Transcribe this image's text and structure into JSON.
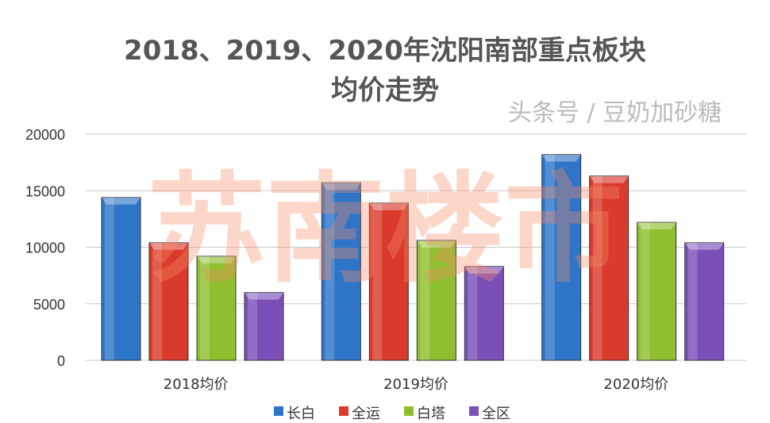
{
  "chart_data": {
    "type": "bar",
    "title_line1": "2018、2019、2020年沈阳南部重点板块",
    "title_line2": "均价走势",
    "categories": [
      "2018均价",
      "2019均价",
      "2020均价"
    ],
    "series": [
      {
        "name": "长白",
        "color": "#2e75c8",
        "values": [
          14400,
          15700,
          18200
        ]
      },
      {
        "name": "全运",
        "color": "#d93a2b",
        "values": [
          10400,
          13900,
          16300
        ]
      },
      {
        "name": "白塔",
        "color": "#8fbf2e",
        "values": [
          9200,
          10600,
          12200
        ]
      },
      {
        "name": "全区",
        "color": "#7b4fb8",
        "values": [
          6000,
          8300,
          10400
        ]
      }
    ],
    "yticks": [
      0,
      5000,
      10000,
      15000,
      20000
    ],
    "ylim": [
      0,
      20000
    ],
    "grid": true,
    "legend": "bottom"
  },
  "watermark": {
    "logo": "苏南楼市",
    "overlay": "头条号 / 豆奶加砂糖"
  }
}
